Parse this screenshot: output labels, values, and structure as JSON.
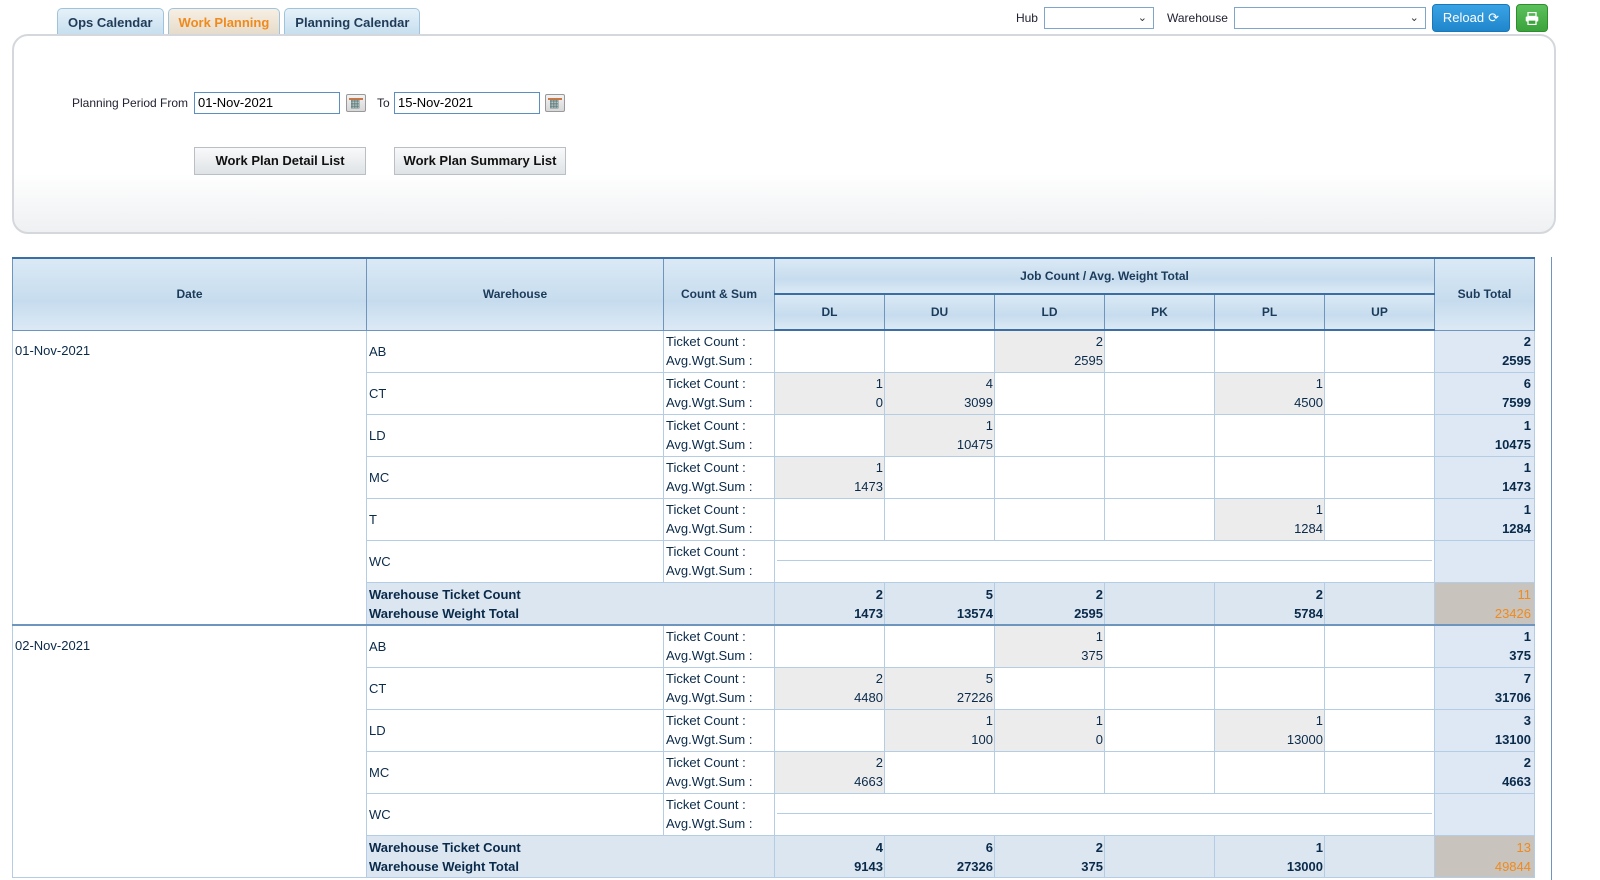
{
  "tabs": [
    {
      "label": "Ops Calendar",
      "active": false
    },
    {
      "label": "Work Planning",
      "active": true
    },
    {
      "label": "Planning Calendar",
      "active": false
    }
  ],
  "toolbar": {
    "hub_label": "Hub",
    "hub_value": "",
    "warehouse_label": "Warehouse",
    "warehouse_value": "",
    "reload_label": "Reload",
    "reload_icon": "refresh-icon",
    "print_icon": "printer-icon",
    "reload_color": "#1f86cc",
    "print_color": "#3ba33b"
  },
  "form": {
    "period_from_label": "Planning Period From",
    "from_value": "01-Nov-2021",
    "to_label": "To",
    "to_value": "15-Nov-2021",
    "detail_button": "Work Plan Detail List",
    "summary_button": "Work Plan Summary List"
  },
  "table": {
    "headers": {
      "date": "Date",
      "warehouse": "Warehouse",
      "count_sum": "Count & Sum",
      "job_count": "Job Count / Avg. Weight Total",
      "sub_total": "Sub Total",
      "types": [
        "DL",
        "DU",
        "LD",
        "PK",
        "PL",
        "UP"
      ]
    },
    "count_label": "Ticket Count :",
    "sum_label": "Avg.Wgt.Sum :",
    "total_count_label": "Warehouse Ticket Count",
    "total_weight_label": "Warehouse Weight Total",
    "days": [
      {
        "date": "01-Nov-2021",
        "rows": [
          {
            "wh": "AB",
            "cells": [
              null,
              null,
              [
                "2",
                "2595"
              ],
              null,
              null,
              null
            ],
            "sub": [
              "2",
              "2595"
            ]
          },
          {
            "wh": "CT",
            "cells": [
              [
                "1",
                "0"
              ],
              [
                "4",
                "3099"
              ],
              null,
              null,
              [
                "1",
                "4500"
              ],
              null
            ],
            "sub": [
              "6",
              "7599"
            ]
          },
          {
            "wh": "LD",
            "cells": [
              null,
              [
                "1",
                "10475"
              ],
              null,
              null,
              null,
              null
            ],
            "sub": [
              "1",
              "10475"
            ]
          },
          {
            "wh": "MC",
            "cells": [
              [
                "1",
                "1473"
              ],
              null,
              null,
              null,
              null,
              null
            ],
            "sub": [
              "1",
              "1473"
            ]
          },
          {
            "wh": "T",
            "cells": [
              null,
              null,
              null,
              null,
              [
                "1",
                "1284"
              ],
              null
            ],
            "sub": [
              "1",
              "1284"
            ]
          },
          {
            "wh": "WC",
            "empty": true
          }
        ],
        "totals": [
          [
            "2",
            "1473"
          ],
          [
            "5",
            "13574"
          ],
          [
            "2",
            "2595"
          ],
          null,
          [
            "2",
            "5784"
          ],
          null
        ],
        "grand": [
          "11",
          "23426"
        ]
      },
      {
        "date": "02-Nov-2021",
        "rows": [
          {
            "wh": "AB",
            "cells": [
              null,
              null,
              [
                "1",
                "375"
              ],
              null,
              null,
              null
            ],
            "sub": [
              "1",
              "375"
            ]
          },
          {
            "wh": "CT",
            "cells": [
              [
                "2",
                "4480"
              ],
              [
                "5",
                "27226"
              ],
              null,
              null,
              null,
              null
            ],
            "sub": [
              "7",
              "31706"
            ]
          },
          {
            "wh": "LD",
            "cells": [
              null,
              [
                "1",
                "100"
              ],
              [
                "1",
                "0"
              ],
              null,
              [
                "1",
                "13000"
              ],
              null
            ],
            "sub": [
              "3",
              "13100"
            ]
          },
          {
            "wh": "MC",
            "cells": [
              [
                "2",
                "4663"
              ],
              null,
              null,
              null,
              null,
              null
            ],
            "sub": [
              "2",
              "4663"
            ]
          },
          {
            "wh": "WC",
            "empty": true
          }
        ],
        "totals": [
          [
            "4",
            "9143"
          ],
          [
            "6",
            "27326"
          ],
          [
            "2",
            "375"
          ],
          null,
          [
            "1",
            "13000"
          ],
          null
        ],
        "grand": [
          "13",
          "49844"
        ]
      }
    ]
  }
}
